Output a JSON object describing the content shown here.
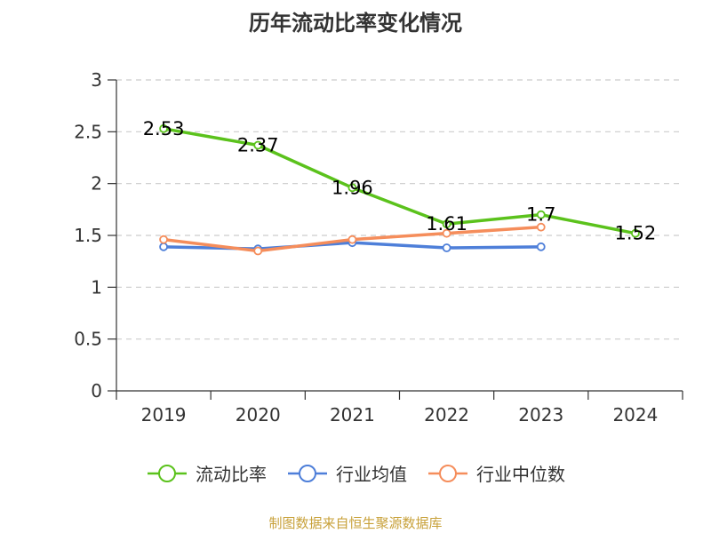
{
  "chart_data": {
    "type": "line",
    "title": "历年流动比率变化情况",
    "categories": [
      "2019",
      "2020",
      "2021",
      "2022",
      "2023",
      "2024"
    ],
    "ylim": [
      0,
      3
    ],
    "yticks": [
      "0",
      "0.5",
      "1",
      "1.5",
      "2",
      "2.5",
      "3"
    ],
    "grid": true,
    "legend_position": "bottom",
    "series": [
      {
        "name": "流动比率",
        "color": "#5bc21c",
        "values": [
          2.53,
          2.37,
          1.96,
          1.61,
          1.7,
          1.52
        ],
        "labels": [
          "2.53",
          "2.37",
          "1.96",
          "1.61",
          "1.7",
          "1.52"
        ]
      },
      {
        "name": "行业均值",
        "color": "#4e7fd9",
        "values": [
          1.39,
          1.37,
          1.43,
          1.38,
          1.39,
          null
        ]
      },
      {
        "name": "行业中位数",
        "color": "#f58d5b",
        "values": [
          1.46,
          1.35,
          1.46,
          1.52,
          1.58,
          null
        ]
      }
    ]
  },
  "source": "制图数据来自恒生聚源数据库"
}
